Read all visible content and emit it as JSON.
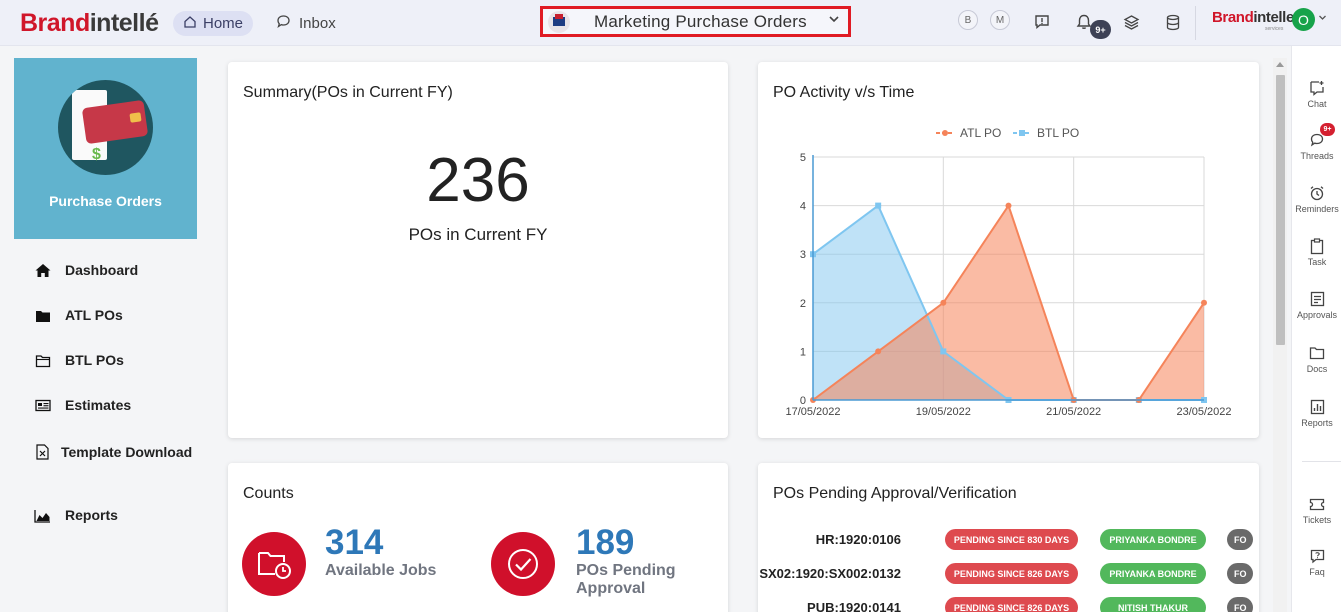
{
  "header": {
    "logo_red": "Brand",
    "logo_dark": "intellé",
    "nav_home": "Home",
    "nav_inbox": "Inbox",
    "app_switcher": "Marketing Purchase Orders",
    "circle_b": "B",
    "circle_m": "M",
    "notification_badge": "9+",
    "client_logo_red": "Brand",
    "client_logo_dark": "intelle",
    "client_logo_sub": "services",
    "avatar_initial": "O"
  },
  "sidebar": {
    "app_title": "Purchase Orders",
    "items": [
      {
        "label": "Dashboard",
        "icon": "home-icon"
      },
      {
        "label": "ATL POs",
        "icon": "folder-filled-icon"
      },
      {
        "label": "BTL POs",
        "icon": "folder-outline-icon"
      },
      {
        "label": "Estimates",
        "icon": "estimate-icon"
      },
      {
        "label": "Template Download",
        "icon": "file-excel-icon"
      },
      {
        "label": "Reports",
        "icon": "area-chart-icon"
      }
    ]
  },
  "summary": {
    "title": "Summary(POs in Current FY)",
    "value": "236",
    "subtitle": "POs in Current FY"
  },
  "activity": {
    "title": "PO Activity v/s Time",
    "chart_data": {
      "type": "area",
      "x": [
        "17/05/2022",
        "18/05/2022",
        "19/05/2022",
        "20/05/2022",
        "21/05/2022",
        "22/05/2022",
        "23/05/2022"
      ],
      "x_tick_labels": [
        "17/05/2022",
        "19/05/2022",
        "21/05/2022",
        "23/05/2022"
      ],
      "y_ticks": [
        "0",
        "1",
        "2",
        "3",
        "4",
        "5"
      ],
      "ylim": [
        0,
        5
      ],
      "grid": true,
      "legend_position": "top-center",
      "series": [
        {
          "name": "ATL PO",
          "values": [
            0,
            1,
            2,
            4,
            0,
            0,
            2
          ],
          "color": "#f5845a"
        },
        {
          "name": "BTL PO",
          "values": [
            3,
            4,
            1,
            0,
            0,
            0,
            0
          ],
          "color": "#7fc6f0"
        }
      ]
    }
  },
  "counts": {
    "title": "Counts",
    "available_jobs_value": "314",
    "available_jobs_label": "Available Jobs",
    "pending_value": "189",
    "pending_label_1": "POs Pending",
    "pending_label_2": "Approval"
  },
  "pending": {
    "title": "POs Pending Approval/Verification",
    "rows": [
      {
        "id": "HR:1920:0106",
        "status": "PENDING SINCE 830 DAYS",
        "user": "PRIYANKA BONDRE",
        "extra": "FO"
      },
      {
        "id": "SX02:1920:SX002:0132",
        "status": "PENDING SINCE 826 DAYS",
        "user": "PRIYANKA BONDRE",
        "extra": "FO"
      },
      {
        "id": "PUB:1920:0141",
        "status": "PENDING SINCE 826 DAYS",
        "user": "NITISH THAKUR",
        "extra": "FO"
      }
    ]
  },
  "rail": {
    "items": [
      {
        "label": "Chat",
        "icon": "chat-plus-icon"
      },
      {
        "label": "Threads",
        "icon": "threads-icon",
        "badge": "9+"
      },
      {
        "label": "Reminders",
        "icon": "alarm-icon"
      },
      {
        "label": "Task",
        "icon": "clipboard-icon"
      },
      {
        "label": "Approvals",
        "icon": "approvals-icon"
      },
      {
        "label": "Docs",
        "icon": "docs-folder-icon"
      },
      {
        "label": "Reports",
        "icon": "reports-icon"
      },
      {
        "label": "Tickets",
        "icon": "ticket-icon"
      },
      {
        "label": "Faq",
        "icon": "faq-icon"
      }
    ]
  }
}
